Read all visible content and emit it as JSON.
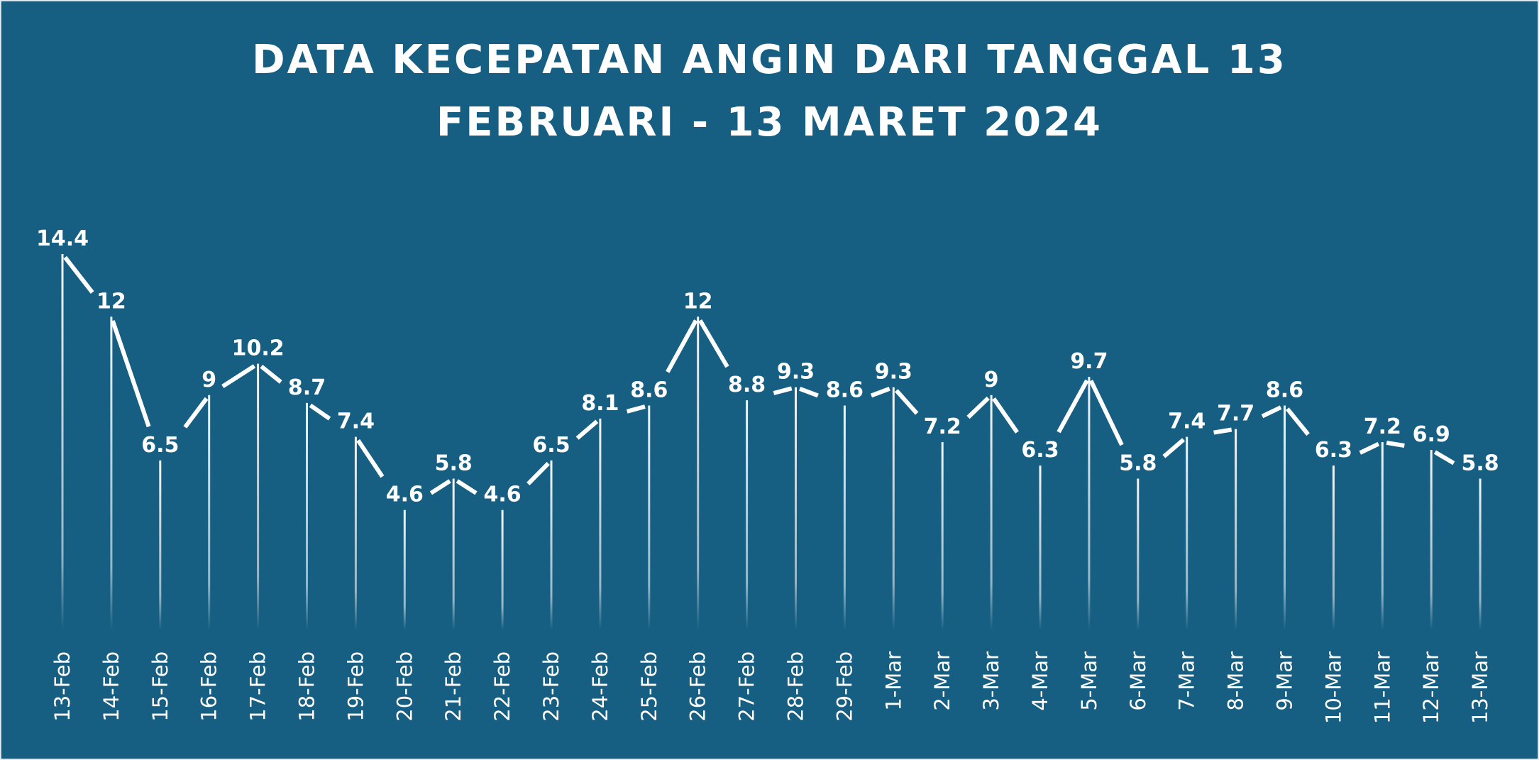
{
  "chart_data": {
    "type": "line",
    "title_lines": [
      "DATA KECEPATAN ANGIN DARI TANGGAL 13",
      "FEBRUARI - 13 MARET 2024"
    ],
    "categories": [
      "13-Feb",
      "14-Feb",
      "15-Feb",
      "16-Feb",
      "17-Feb",
      "18-Feb",
      "19-Feb",
      "20-Feb",
      "21-Feb",
      "22-Feb",
      "23-Feb",
      "24-Feb",
      "25-Feb",
      "26-Feb",
      "27-Feb",
      "28-Feb",
      "29-Feb",
      "1-Mar",
      "2-Mar",
      "3-Mar",
      "4-Mar",
      "5-Mar",
      "6-Mar",
      "7-Mar",
      "8-Mar",
      "9-Mar",
      "10-Mar",
      "11-Mar",
      "12-Mar",
      "13-Mar"
    ],
    "values": [
      14.4,
      12,
      6.5,
      9,
      10.2,
      8.7,
      7.4,
      4.6,
      5.8,
      4.6,
      6.5,
      8.1,
      8.6,
      12,
      8.8,
      9.3,
      8.6,
      9.3,
      7.2,
      9,
      6.3,
      9.7,
      5.8,
      7.4,
      7.7,
      8.6,
      6.3,
      7.2,
      6.9,
      5.8
    ],
    "data_labels": true,
    "drop_lines": true,
    "xlabel": "",
    "ylabel": "",
    "ylim": [
      0,
      14.4
    ],
    "grid": false,
    "legend": "none",
    "colors": {
      "background": "#165e82",
      "line": "#ffffff",
      "text": "#ffffff"
    }
  }
}
